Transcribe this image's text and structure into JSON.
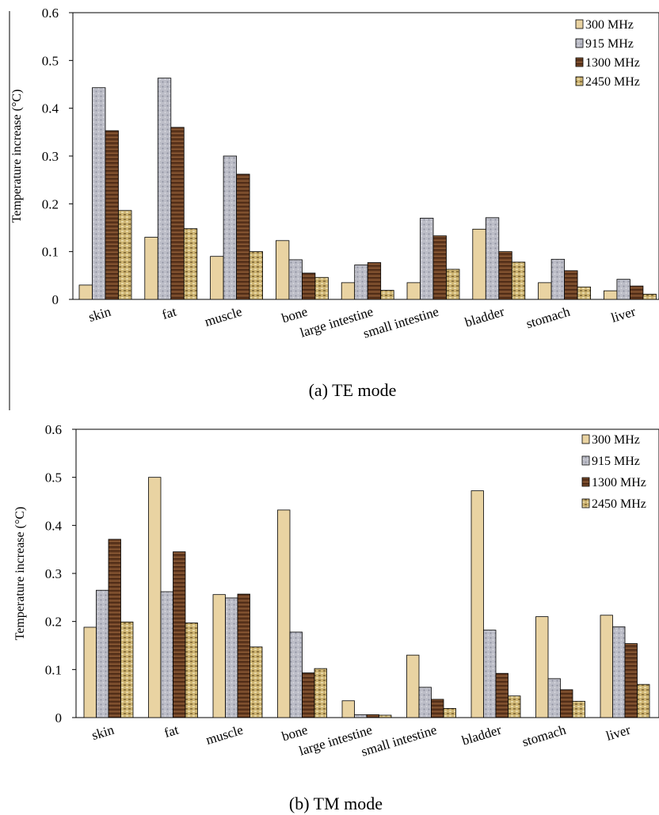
{
  "colors": {
    "300 MHz": "#e8d2a0",
    "915 MHz": "#b9bac4",
    "1300 MHz": "#6b3f24",
    "2450 MHz": "#c9b06a"
  },
  "chart_data": [
    {
      "type": "bar",
      "caption": "(a) TE mode",
      "ylabel": "Temperature increase  (°C)",
      "xlabel": "",
      "ylim": [
        0,
        0.6
      ],
      "yticks": [
        "0",
        "0.1",
        "0.2",
        "0.3",
        "0.4",
        "0.5",
        "0.6"
      ],
      "grid": false,
      "legend_position": "top-right",
      "categories": [
        "skin",
        "fat",
        "muscle",
        "bone",
        "large intestine",
        "small intestine",
        "bladder",
        "stomach",
        "liver"
      ],
      "series": [
        {
          "name": "300 MHz",
          "values": [
            0.03,
            0.13,
            0.09,
            0.123,
            0.035,
            0.035,
            0.147,
            0.035,
            0.018
          ]
        },
        {
          "name": "915 MHz",
          "values": [
            0.443,
            0.463,
            0.3,
            0.083,
            0.072,
            0.17,
            0.171,
            0.084,
            0.042
          ]
        },
        {
          "name": "1300 MHz",
          "values": [
            0.353,
            0.36,
            0.262,
            0.055,
            0.077,
            0.133,
            0.1,
            0.06,
            0.028
          ]
        },
        {
          "name": "2450 MHz",
          "values": [
            0.186,
            0.148,
            0.1,
            0.046,
            0.019,
            0.063,
            0.078,
            0.026,
            0.011
          ]
        }
      ]
    },
    {
      "type": "bar",
      "caption": "(b) TM mode",
      "ylabel": "Temperature increase  (°C)",
      "xlabel": "",
      "ylim": [
        0,
        0.6
      ],
      "yticks": [
        "0",
        "0.1",
        "0.2",
        "0.3",
        "0.4",
        "0.5",
        "0.6"
      ],
      "grid": false,
      "legend_position": "top-right",
      "categories": [
        "skin",
        "fat",
        "muscle",
        "bone",
        "large intestine",
        "small intestine",
        "bladder",
        "stomach",
        "liver"
      ],
      "series": [
        {
          "name": "300 MHz",
          "values": [
            0.188,
            0.5,
            0.256,
            0.432,
            0.035,
            0.13,
            0.472,
            0.21,
            0.213
          ]
        },
        {
          "name": "915 MHz",
          "values": [
            0.265,
            0.262,
            0.249,
            0.178,
            0.006,
            0.063,
            0.182,
            0.081,
            0.189
          ]
        },
        {
          "name": "1300 MHz",
          "values": [
            0.371,
            0.345,
            0.257,
            0.093,
            0.006,
            0.038,
            0.092,
            0.058,
            0.154
          ]
        },
        {
          "name": "2450 MHz",
          "values": [
            0.199,
            0.197,
            0.147,
            0.102,
            0.005,
            0.019,
            0.045,
            0.034,
            0.069
          ]
        }
      ]
    }
  ]
}
